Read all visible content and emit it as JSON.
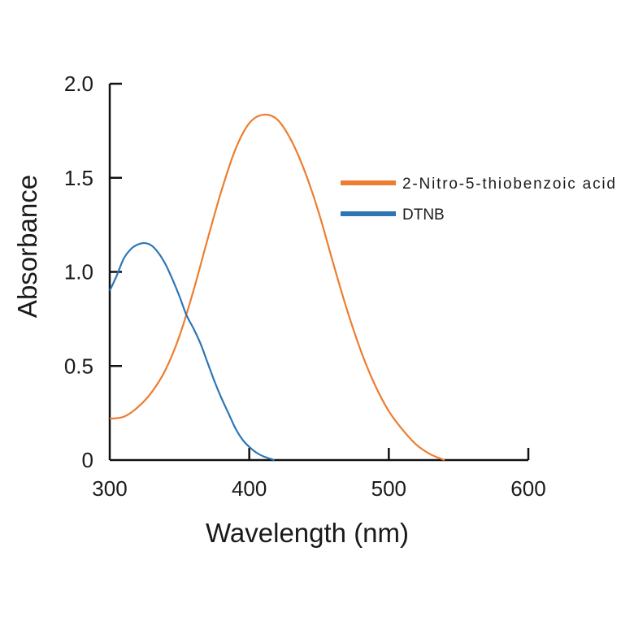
{
  "chart_data": {
    "type": "line",
    "title": "",
    "xlabel": "Wavelength (nm)",
    "ylabel": "Absorbance",
    "xlim": [
      300,
      600
    ],
    "ylim": [
      0,
      2.0
    ],
    "xticks": [
      300,
      400,
      500,
      600
    ],
    "xtick_labels": [
      "300",
      "400",
      "500",
      "600"
    ],
    "yticks": [
      0,
      0.5,
      1.0,
      1.5,
      2.0
    ],
    "ytick_labels": [
      "0",
      "0.5",
      "1.0",
      "1.5",
      "2.0"
    ],
    "grid": false,
    "legend_position": "right",
    "series": [
      {
        "name": "2-Nitro-5-thiobenzoic acid",
        "color": "#ED7D31",
        "x": [
          300,
          310,
          320,
          330,
          340,
          350,
          360,
          370,
          380,
          390,
          400,
          410,
          420,
          430,
          440,
          450,
          460,
          470,
          480,
          490,
          500,
          510,
          520,
          530,
          540
        ],
        "y": [
          0.22,
          0.23,
          0.28,
          0.36,
          0.48,
          0.66,
          0.9,
          1.17,
          1.43,
          1.65,
          1.79,
          1.835,
          1.81,
          1.7,
          1.53,
          1.31,
          1.05,
          0.8,
          0.58,
          0.4,
          0.26,
          0.16,
          0.08,
          0.03,
          0.0
        ]
      },
      {
        "name": "DTNB",
        "color": "#2E75B6",
        "x": [
          300,
          305,
          310,
          315,
          320,
          325,
          330,
          335,
          340,
          345,
          350,
          355,
          360,
          365,
          370,
          375,
          380,
          385,
          390,
          395,
          400,
          405,
          410,
          418
        ],
        "y": [
          0.9,
          0.98,
          1.07,
          1.12,
          1.145,
          1.153,
          1.14,
          1.1,
          1.04,
          0.96,
          0.87,
          0.77,
          0.7,
          0.62,
          0.52,
          0.42,
          0.33,
          0.25,
          0.17,
          0.11,
          0.07,
          0.04,
          0.02,
          0.0
        ]
      }
    ]
  }
}
